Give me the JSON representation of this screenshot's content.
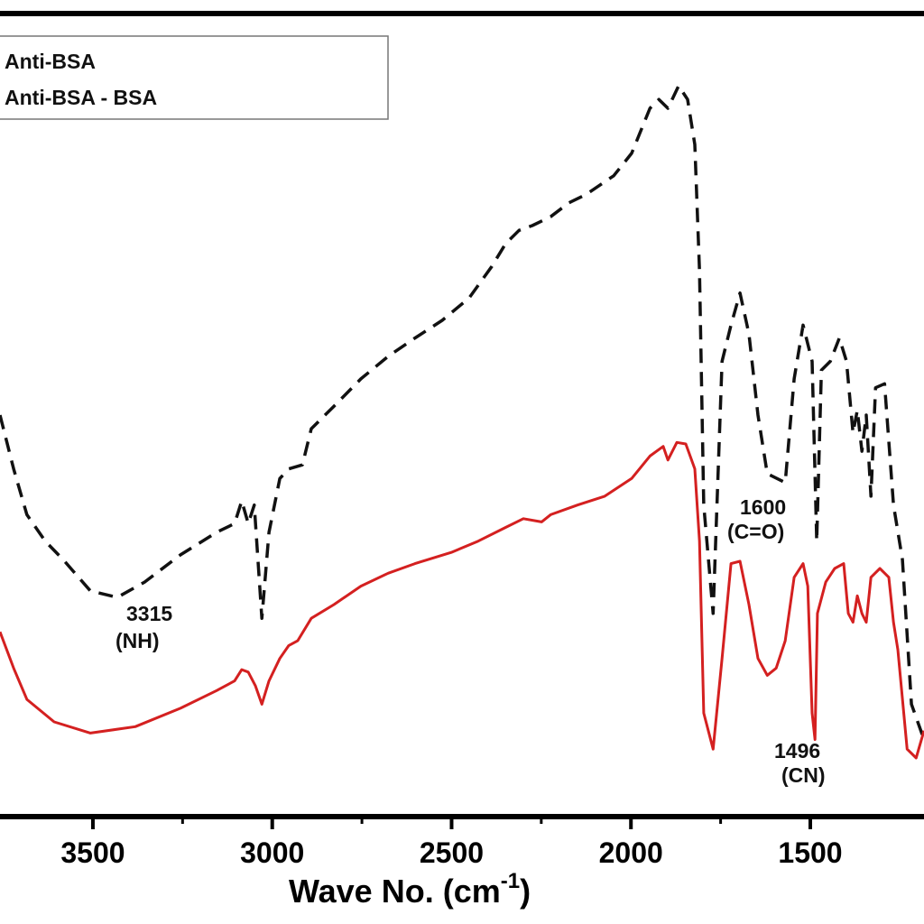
{
  "chart_data": {
    "type": "line",
    "xlabel": [
      "Wave No. (cm",
      "-1",
      ")"
    ],
    "xlim": [
      3759,
      1183
    ],
    "ylim": [
      0,
      100
    ],
    "xticks": [
      3500,
      3000,
      2500,
      2000,
      1500
    ],
    "xminor": [
      3250,
      2750,
      2250,
      1750
    ],
    "annotations": [
      "3315",
      "(NH)",
      "1600",
      "(C=O)",
      "1496",
      "(CN)"
    ],
    "series": [
      {
        "name": "Anti-BSA",
        "color": "#111111",
        "dash": true,
        "x": [
          3759,
          3721,
          3684,
          3633,
          3583,
          3507,
          3432,
          3356,
          3256,
          3155,
          3105,
          3085,
          3067,
          3050,
          3029,
          3009,
          2979,
          2954,
          2916,
          2891,
          2828,
          2753,
          2677,
          2602,
          2526,
          2451,
          2388,
          2350,
          2312,
          2275,
          2224,
          2174,
          2124,
          2048,
          1998,
          1947,
          1922,
          1897,
          1885,
          1867,
          1842,
          1822,
          1809,
          1797,
          1771,
          1746,
          1721,
          1696,
          1671,
          1646,
          1620,
          1570,
          1545,
          1520,
          1495,
          1482,
          1469,
          1444,
          1419,
          1399,
          1381,
          1369,
          1356,
          1344,
          1331,
          1318,
          1293,
          1268,
          1243,
          1218,
          1183
        ],
        "values": [
          50.0,
          43.3,
          37.6,
          34.3,
          32.0,
          28.1,
          27.3,
          29.2,
          32.6,
          35.4,
          36.5,
          39.3,
          36.5,
          38.8,
          24.7,
          35.4,
          42.1,
          43.3,
          43.8,
          48.3,
          51.1,
          54.5,
          57.3,
          59.6,
          61.8,
          64.6,
          68.5,
          71.3,
          73.0,
          73.6,
          74.7,
          76.4,
          77.5,
          79.8,
          82.6,
          88.2,
          89.3,
          88.2,
          89.3,
          91.0,
          89.3,
          83.7,
          68.0,
          38.8,
          25.3,
          56.7,
          61.2,
          65.2,
          60.1,
          50.0,
          42.7,
          41.6,
          54.5,
          61.2,
          56.7,
          34.3,
          55.6,
          56.7,
          59.6,
          56.7,
          47.8,
          50.6,
          45.5,
          50.0,
          39.9,
          53.4,
          53.9,
          38.8,
          32.0,
          14.0,
          9.6
        ]
      },
      {
        "name": "Anti-BSA - BSA",
        "color": "#d42020",
        "dash": false,
        "x": [
          3759,
          3721,
          3684,
          3608,
          3507,
          3382,
          3256,
          3155,
          3105,
          3085,
          3067,
          3047,
          3029,
          3009,
          2979,
          2954,
          2929,
          2891,
          2828,
          2753,
          2677,
          2602,
          2501,
          2426,
          2350,
          2300,
          2249,
          2224,
          2149,
          2073,
          1998,
          1947,
          1910,
          1897,
          1872,
          1847,
          1822,
          1809,
          1797,
          1771,
          1746,
          1721,
          1696,
          1671,
          1646,
          1620,
          1595,
          1570,
          1545,
          1520,
          1507,
          1495,
          1487,
          1480,
          1457,
          1432,
          1407,
          1394,
          1381,
          1369,
          1356,
          1344,
          1331,
          1306,
          1281,
          1268,
          1256,
          1230,
          1205,
          1183
        ],
        "values": [
          23.0,
          18.5,
          14.6,
          11.8,
          10.4,
          11.2,
          13.5,
          15.7,
          16.9,
          18.3,
          18.0,
          16.3,
          14.0,
          16.9,
          19.7,
          21.3,
          21.9,
          24.7,
          26.4,
          28.7,
          30.3,
          31.5,
          32.9,
          34.3,
          36.0,
          37.1,
          36.7,
          37.6,
          38.8,
          39.9,
          42.1,
          44.9,
          46.1,
          44.4,
          46.6,
          46.4,
          43.3,
          34.3,
          12.9,
          8.4,
          19.7,
          31.5,
          31.8,
          26.4,
          19.7,
          17.6,
          18.5,
          21.9,
          29.8,
          31.5,
          28.7,
          12.9,
          9.6,
          25.3,
          29.2,
          30.9,
          31.5,
          25.3,
          24.2,
          27.5,
          25.3,
          24.2,
          29.8,
          30.9,
          29.8,
          24.2,
          20.8,
          8.4,
          7.3,
          10.7
        ]
      }
    ]
  }
}
